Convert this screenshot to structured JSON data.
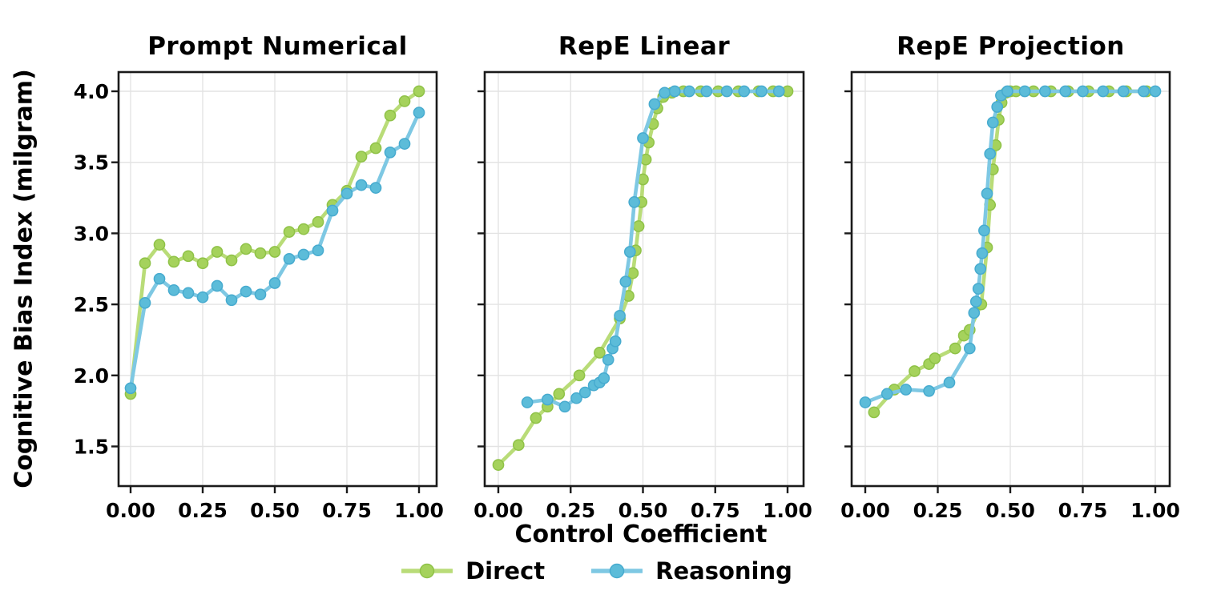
{
  "figure": {
    "y_axis_label": "Cognitive Bias Index (milgram)",
    "x_axis_label": "Control Coefficient",
    "x_ticks": [
      "0.00",
      "0.25",
      "0.50",
      "0.75",
      "1.00"
    ],
    "y_ticks": [
      "1.5",
      "2.0",
      "2.5",
      "3.0",
      "3.5",
      "4.0"
    ],
    "background": "#ffffff",
    "grid_color": "#e3e3e3",
    "spine_color": "#1a1a1a",
    "text_color": "#000000",
    "grid": true
  },
  "legend": {
    "position": "bottom-center",
    "items": [
      {
        "label": "Direct",
        "line_color": "#b9dc78",
        "marker_color": "#a5d25c",
        "marker_edge": "#8fc247"
      },
      {
        "label": "Reasoning",
        "line_color": "#7ec8e3",
        "marker_color": "#5cbcd9",
        "marker_edge": "#47abcf"
      }
    ]
  },
  "chart_data": [
    {
      "type": "line",
      "title": "Prompt Numerical",
      "xlabel": "Control Coefficient",
      "ylabel": "Cognitive Bias Index (milgram)",
      "xlim": [
        -0.05,
        1.05
      ],
      "ylim": [
        1.22,
        4.13
      ],
      "series": [
        {
          "name": "Direct",
          "points": [
            [
              0,
              1.87
            ],
            [
              0.05,
              2.79
            ],
            [
              0.1,
              2.92
            ],
            [
              0.15,
              2.8
            ],
            [
              0.2,
              2.84
            ],
            [
              0.25,
              2.79
            ],
            [
              0.3,
              2.87
            ],
            [
              0.35,
              2.81
            ],
            [
              0.4,
              2.89
            ],
            [
              0.45,
              2.86
            ],
            [
              0.5,
              2.87
            ],
            [
              0.55,
              3.01
            ],
            [
              0.6,
              3.03
            ],
            [
              0.65,
              3.08
            ],
            [
              0.7,
              3.2
            ],
            [
              0.75,
              3.3
            ],
            [
              0.8,
              3.54
            ],
            [
              0.85,
              3.6
            ],
            [
              0.9,
              3.83
            ],
            [
              0.95,
              3.93
            ],
            [
              1,
              4
            ]
          ]
        },
        {
          "name": "Reasoning",
          "points": [
            [
              0,
              1.91
            ],
            [
              0.05,
              2.51
            ],
            [
              0.1,
              2.68
            ],
            [
              0.15,
              2.6
            ],
            [
              0.2,
              2.58
            ],
            [
              0.25,
              2.55
            ],
            [
              0.3,
              2.63
            ],
            [
              0.35,
              2.53
            ],
            [
              0.4,
              2.59
            ],
            [
              0.45,
              2.57
            ],
            [
              0.5,
              2.65
            ],
            [
              0.55,
              2.82
            ],
            [
              0.6,
              2.85
            ],
            [
              0.65,
              2.88
            ],
            [
              0.7,
              3.16
            ],
            [
              0.75,
              3.28
            ],
            [
              0.8,
              3.34
            ],
            [
              0.85,
              3.32
            ],
            [
              0.9,
              3.57
            ],
            [
              0.95,
              3.63
            ],
            [
              1,
              3.85
            ]
          ]
        }
      ]
    },
    {
      "type": "line",
      "title": "RepE Linear",
      "xlabel": "Control Coefficient",
      "xlim": [
        -0.05,
        1.05
      ],
      "ylim": [
        1.22,
        4.13
      ],
      "series": [
        {
          "name": "Direct",
          "points": [
            [
              0,
              1.37
            ],
            [
              0.07,
              1.51
            ],
            [
              0.13,
              1.7
            ],
            [
              0.17,
              1.78
            ],
            [
              0.21,
              1.87
            ],
            [
              0.28,
              2.0
            ],
            [
              0.35,
              2.16
            ],
            [
              0.42,
              2.4
            ],
            [
              0.45,
              2.56
            ],
            [
              0.465,
              2.72
            ],
            [
              0.475,
              2.88
            ],
            [
              0.485,
              3.05
            ],
            [
              0.495,
              3.22
            ],
            [
              0.5,
              3.38
            ],
            [
              0.51,
              3.52
            ],
            [
              0.52,
              3.64
            ],
            [
              0.535,
              3.77
            ],
            [
              0.55,
              3.88
            ],
            [
              0.57,
              3.96
            ],
            [
              0.6,
              3.99
            ],
            [
              0.64,
              4
            ],
            [
              0.7,
              4
            ],
            [
              0.76,
              4
            ],
            [
              0.83,
              4
            ],
            [
              0.9,
              4
            ],
            [
              0.95,
              4
            ],
            [
              1,
              4
            ]
          ]
        },
        {
          "name": "Reasoning",
          "points": [
            [
              0.1,
              1.81
            ],
            [
              0.17,
              1.83
            ],
            [
              0.23,
              1.78
            ],
            [
              0.27,
              1.84
            ],
            [
              0.3,
              1.88
            ],
            [
              0.33,
              1.93
            ],
            [
              0.35,
              1.95
            ],
            [
              0.365,
              1.98
            ],
            [
              0.38,
              2.11
            ],
            [
              0.395,
              2.19
            ],
            [
              0.405,
              2.24
            ],
            [
              0.42,
              2.42
            ],
            [
              0.44,
              2.66
            ],
            [
              0.455,
              2.87
            ],
            [
              0.47,
              3.22
            ],
            [
              0.5,
              3.67
            ],
            [
              0.54,
              3.91
            ],
            [
              0.575,
              3.99
            ],
            [
              0.61,
              4
            ],
            [
              0.66,
              4
            ],
            [
              0.72,
              4
            ],
            [
              0.79,
              4
            ],
            [
              0.85,
              4
            ],
            [
              0.91,
              4
            ],
            [
              0.97,
              4
            ]
          ]
        }
      ]
    },
    {
      "type": "line",
      "title": "RepE Projection",
      "xlabel": "Control Coefficient",
      "xlim": [
        -0.05,
        1.05
      ],
      "ylim": [
        1.22,
        4.13
      ],
      "series": [
        {
          "name": "Direct",
          "points": [
            [
              0.03,
              1.74
            ],
            [
              0.1,
              1.9
            ],
            [
              0.17,
              2.03
            ],
            [
              0.22,
              2.08
            ],
            [
              0.24,
              2.12
            ],
            [
              0.31,
              2.19
            ],
            [
              0.34,
              2.28
            ],
            [
              0.36,
              2.32
            ],
            [
              0.4,
              2.5
            ],
            [
              0.42,
              2.9
            ],
            [
              0.43,
              3.2
            ],
            [
              0.44,
              3.45
            ],
            [
              0.45,
              3.62
            ],
            [
              0.46,
              3.8
            ],
            [
              0.47,
              3.92
            ],
            [
              0.485,
              3.99
            ],
            [
              0.5,
              4
            ],
            [
              0.52,
              4
            ],
            [
              0.58,
              4
            ],
            [
              0.64,
              4
            ],
            [
              0.7,
              4
            ],
            [
              0.77,
              4
            ],
            [
              0.84,
              4
            ],
            [
              0.9,
              4
            ],
            [
              0.97,
              4
            ]
          ]
        },
        {
          "name": "Reasoning",
          "points": [
            [
              0,
              1.81
            ],
            [
              0.075,
              1.87
            ],
            [
              0.14,
              1.9
            ],
            [
              0.22,
              1.89
            ],
            [
              0.29,
              1.95
            ],
            [
              0.36,
              2.19
            ],
            [
              0.375,
              2.44
            ],
            [
              0.382,
              2.52
            ],
            [
              0.39,
              2.61
            ],
            [
              0.397,
              2.75
            ],
            [
              0.403,
              2.86
            ],
            [
              0.41,
              3.02
            ],
            [
              0.42,
              3.28
            ],
            [
              0.43,
              3.56
            ],
            [
              0.44,
              3.78
            ],
            [
              0.455,
              3.89
            ],
            [
              0.468,
              3.97
            ],
            [
              0.49,
              4
            ],
            [
              0.55,
              4
            ],
            [
              0.62,
              4
            ],
            [
              0.69,
              4
            ],
            [
              0.75,
              4
            ],
            [
              0.82,
              4
            ],
            [
              0.89,
              4
            ],
            [
              0.96,
              4
            ],
            [
              1,
              4
            ]
          ]
        }
      ]
    }
  ]
}
